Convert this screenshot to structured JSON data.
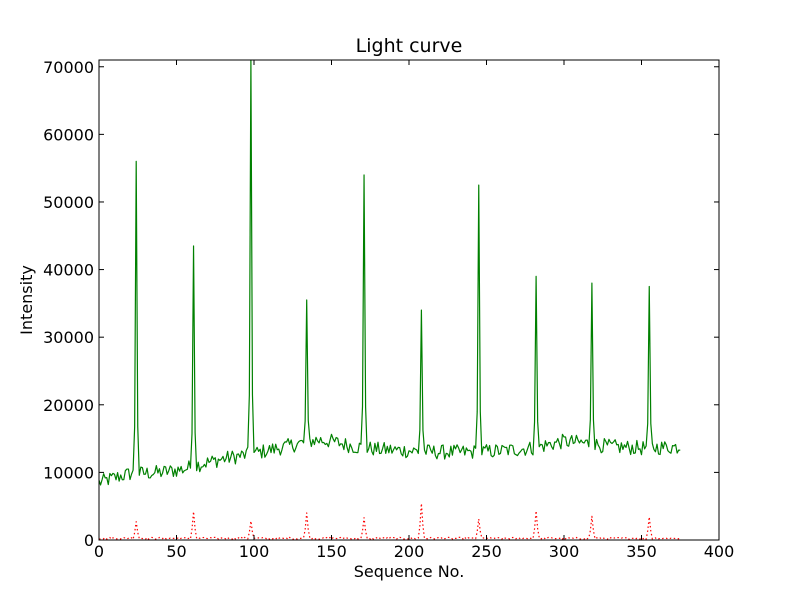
{
  "chart_data": {
    "type": "line",
    "title": "Light curve",
    "xlabel": "Sequence No.",
    "ylabel": "Intensity",
    "xlim": [
      0,
      400
    ],
    "ylim": [
      0,
      71000
    ],
    "xticks": [
      0,
      50,
      100,
      150,
      200,
      250,
      300,
      350,
      400
    ],
    "yticks": [
      0,
      10000,
      20000,
      30000,
      40000,
      50000,
      60000,
      70000
    ],
    "xtick_labels": [
      "0",
      "50",
      "100",
      "150",
      "200",
      "250",
      "300",
      "350",
      "400"
    ],
    "ytick_labels": [
      "0",
      "10000",
      "20000",
      "30000",
      "40000",
      "50000",
      "60000",
      "70000"
    ],
    "grid": false,
    "legend": null,
    "series": [
      {
        "color": "#008000",
        "style": "solid",
        "baseline_points": [
          [
            0,
            8500
          ],
          [
            10,
            9200
          ],
          [
            20,
            9800
          ],
          [
            40,
            10000
          ],
          [
            55,
            10500
          ],
          [
            65,
            11200
          ],
          [
            80,
            12000
          ],
          [
            100,
            12800
          ],
          [
            120,
            13800
          ],
          [
            140,
            14800
          ],
          [
            150,
            14600
          ],
          [
            165,
            13800
          ],
          [
            180,
            13400
          ],
          [
            200,
            13200
          ],
          [
            220,
            13000
          ],
          [
            240,
            13000
          ],
          [
            260,
            13200
          ],
          [
            280,
            13600
          ],
          [
            300,
            14600
          ],
          [
            315,
            14300
          ],
          [
            330,
            13800
          ],
          [
            350,
            13600
          ],
          [
            375,
            13800
          ]
        ],
        "noise_amplitude": 1100,
        "peaks": [
          [
            24,
            56000
          ],
          [
            61,
            43500
          ],
          [
            98,
            71000
          ],
          [
            134,
            35500
          ],
          [
            171,
            54000
          ],
          [
            208,
            34000
          ],
          [
            245,
            52500
          ],
          [
            282,
            39000
          ],
          [
            318,
            38000
          ],
          [
            355,
            37500
          ]
        ],
        "x_end": 375
      },
      {
        "color": "#ff0000",
        "style": "dotted",
        "baseline": 250,
        "noise_amplitude": 150,
        "peaks": [
          [
            24,
            2700
          ],
          [
            61,
            4200
          ],
          [
            98,
            2800
          ],
          [
            134,
            4000
          ],
          [
            171,
            3300
          ],
          [
            208,
            5400
          ],
          [
            245,
            3100
          ],
          [
            282,
            4300
          ],
          [
            318,
            3500
          ],
          [
            355,
            3400
          ]
        ],
        "x_end": 375
      }
    ]
  }
}
